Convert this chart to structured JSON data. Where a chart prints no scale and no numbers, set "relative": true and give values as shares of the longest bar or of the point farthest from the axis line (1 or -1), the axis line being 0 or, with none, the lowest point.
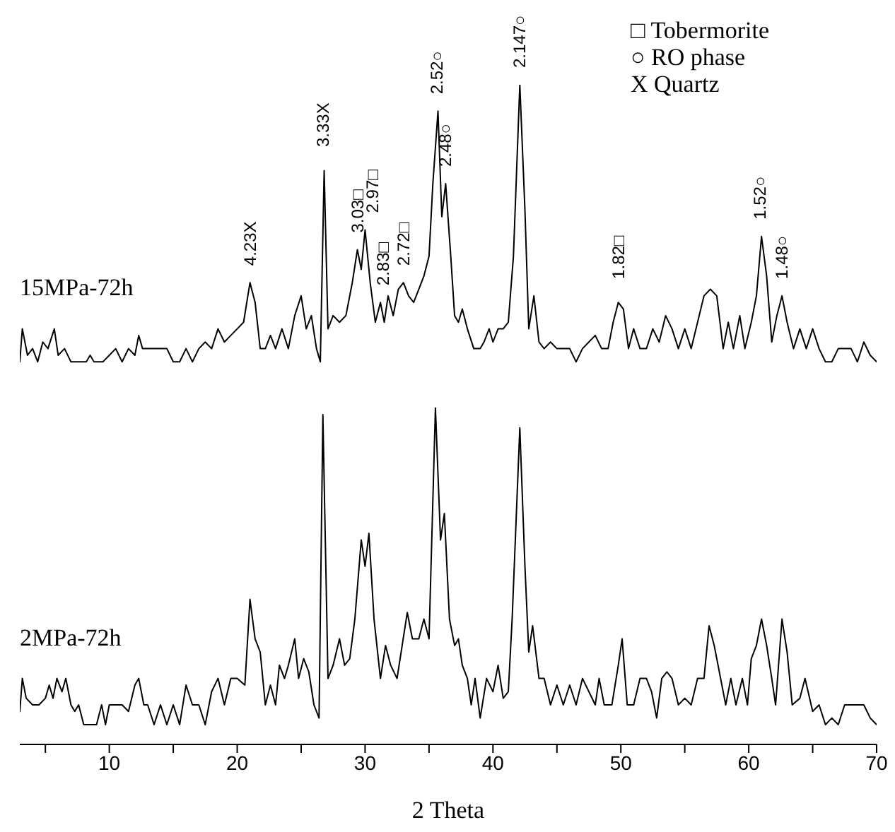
{
  "chart_data": {
    "type": "line",
    "relative": true,
    "xlabel": "2 Theta",
    "xlim": [
      3,
      70
    ],
    "xticks": [
      {
        "value": 5,
        "label": null
      },
      10,
      {
        "value": 15,
        "label": null
      },
      20,
      {
        "value": 25,
        "label": null
      },
      30,
      {
        "value": 35,
        "label": null
      },
      40,
      {
        "value": 45,
        "label": null
      },
      50,
      {
        "value": 55,
        "label": null
      },
      60,
      {
        "value": 65,
        "label": null
      },
      70
    ],
    "series": [
      {
        "name": "15MPa-72h",
        "color": "#000000",
        "x": [
          3.0,
          3.2,
          3.6,
          4.0,
          4.4,
          4.8,
          5.2,
          5.7,
          6.0,
          6.5,
          7.0,
          7.5,
          8.2,
          8.5,
          8.8,
          9.5,
          10.0,
          10.5,
          11.0,
          11.5,
          12.0,
          12.3,
          12.6,
          13.5,
          14.5,
          15.0,
          15.5,
          16.0,
          16.5,
          17.0,
          17.5,
          18.0,
          18.5,
          19.0,
          19.5,
          20.0,
          20.5,
          21.0,
          21.4,
          21.8,
          22.2,
          22.6,
          23.0,
          23.5,
          24.0,
          24.5,
          25.0,
          25.4,
          25.8,
          26.2,
          26.5,
          26.8,
          27.1,
          27.5,
          28.0,
          28.5,
          29.0,
          29.4,
          29.7,
          30.0,
          30.4,
          30.8,
          31.2,
          31.5,
          31.8,
          32.2,
          32.6,
          33.0,
          33.4,
          33.8,
          34.2,
          34.6,
          35.0,
          35.3,
          35.7,
          36.0,
          36.3,
          36.7,
          37.0,
          37.3,
          37.6,
          38.0,
          38.5,
          39.0,
          39.3,
          39.7,
          40.0,
          40.4,
          40.8,
          41.2,
          41.6,
          42.1,
          42.5,
          42.8,
          43.2,
          43.6,
          44.0,
          44.5,
          45.0,
          46.0,
          46.5,
          47.0,
          47.5,
          48.0,
          48.5,
          49.0,
          49.4,
          49.8,
          50.2,
          50.6,
          51.0,
          51.5,
          52.0,
          52.5,
          53.0,
          53.5,
          54.0,
          54.5,
          55.0,
          55.5,
          56.0,
          56.5,
          57.0,
          57.5,
          58.0,
          58.4,
          58.8,
          59.3,
          59.7,
          60.2,
          60.6,
          61.0,
          61.4,
          61.8,
          62.2,
          62.6,
          63.0,
          63.5,
          64.0,
          64.5,
          65.0,
          65.5,
          66.0,
          66.5,
          67.0,
          68.0,
          68.5,
          69.0,
          69.5,
          70.0
        ],
        "values": [
          0.58,
          0.63,
          0.59,
          0.6,
          0.58,
          0.61,
          0.6,
          0.63,
          0.59,
          0.6,
          0.58,
          0.58,
          0.58,
          0.59,
          0.58,
          0.58,
          0.59,
          0.6,
          0.58,
          0.6,
          0.59,
          0.62,
          0.6,
          0.6,
          0.6,
          0.58,
          0.58,
          0.6,
          0.58,
          0.6,
          0.61,
          0.6,
          0.63,
          0.61,
          0.62,
          0.63,
          0.64,
          0.7,
          0.67,
          0.6,
          0.6,
          0.62,
          0.6,
          0.63,
          0.6,
          0.65,
          0.68,
          0.63,
          0.65,
          0.6,
          0.58,
          0.87,
          0.63,
          0.65,
          0.64,
          0.65,
          0.7,
          0.75,
          0.72,
          0.78,
          0.7,
          0.64,
          0.67,
          0.64,
          0.68,
          0.65,
          0.69,
          0.7,
          0.68,
          0.67,
          0.69,
          0.71,
          0.74,
          0.85,
          0.96,
          0.8,
          0.85,
          0.74,
          0.65,
          0.64,
          0.66,
          0.63,
          0.6,
          0.6,
          0.61,
          0.63,
          0.61,
          0.63,
          0.63,
          0.64,
          0.74,
          1.0,
          0.81,
          0.63,
          0.68,
          0.61,
          0.6,
          0.61,
          0.6,
          0.6,
          0.58,
          0.6,
          0.61,
          0.62,
          0.6,
          0.6,
          0.64,
          0.67,
          0.66,
          0.6,
          0.63,
          0.6,
          0.6,
          0.63,
          0.61,
          0.65,
          0.63,
          0.6,
          0.63,
          0.6,
          0.64,
          0.68,
          0.69,
          0.68,
          0.6,
          0.64,
          0.6,
          0.65,
          0.6,
          0.64,
          0.68,
          0.77,
          0.71,
          0.61,
          0.65,
          0.68,
          0.64,
          0.6,
          0.63,
          0.6,
          0.63,
          0.6,
          0.58,
          0.58,
          0.6,
          0.6,
          0.58,
          0.61,
          0.59,
          0.58
        ]
      },
      {
        "name": "2MPa-72h",
        "color": "#000000",
        "x": [
          3.0,
          3.2,
          3.5,
          4.0,
          4.5,
          5.0,
          5.3,
          5.6,
          5.9,
          6.3,
          6.6,
          7.0,
          7.3,
          7.6,
          8.0,
          9.0,
          9.4,
          9.7,
          10.0,
          11.0,
          11.5,
          12.0,
          12.3,
          12.7,
          13.0,
          13.5,
          14.0,
          14.5,
          15.0,
          15.5,
          16.0,
          16.5,
          17.0,
          17.5,
          18.0,
          18.5,
          19.0,
          19.5,
          20.0,
          20.6,
          21.0,
          21.4,
          21.8,
          22.2,
          22.6,
          23.0,
          23.3,
          23.7,
          24.0,
          24.5,
          24.8,
          25.2,
          25.6,
          26.0,
          26.4,
          26.7,
          27.1,
          27.5,
          28.0,
          28.4,
          28.8,
          29.2,
          29.7,
          30.0,
          30.3,
          30.7,
          31.2,
          31.6,
          32.0,
          32.5,
          32.9,
          33.3,
          33.7,
          34.2,
          34.6,
          35.0,
          35.5,
          35.9,
          36.2,
          36.6,
          37.0,
          37.3,
          37.6,
          38.0,
          38.3,
          38.6,
          39.0,
          39.5,
          40.0,
          40.4,
          40.8,
          41.2,
          41.5,
          42.1,
          42.5,
          42.8,
          43.1,
          43.6,
          44.0,
          44.5,
          45.0,
          45.5,
          46.0,
          46.5,
          47.0,
          47.5,
          48.0,
          48.3,
          48.7,
          49.3,
          49.8,
          50.1,
          50.5,
          51.0,
          51.5,
          52.0,
          52.4,
          52.8,
          53.2,
          53.6,
          54.0,
          54.5,
          55.0,
          55.5,
          56.0,
          56.5,
          56.9,
          57.3,
          57.8,
          58.2,
          58.6,
          59.0,
          59.5,
          59.9,
          60.2,
          60.6,
          61.0,
          61.4,
          61.8,
          62.1,
          62.6,
          63.0,
          63.4,
          64.0,
          64.4,
          65.0,
          65.5,
          66.0,
          66.5,
          67.0,
          67.5,
          68.0,
          68.5,
          69.0,
          69.5,
          70.0
        ],
        "values": [
          0.05,
          0.1,
          0.07,
          0.06,
          0.06,
          0.07,
          0.09,
          0.07,
          0.1,
          0.08,
          0.1,
          0.06,
          0.05,
          0.06,
          0.03,
          0.03,
          0.06,
          0.03,
          0.06,
          0.06,
          0.05,
          0.09,
          0.1,
          0.06,
          0.06,
          0.03,
          0.06,
          0.03,
          0.06,
          0.03,
          0.09,
          0.06,
          0.06,
          0.03,
          0.08,
          0.1,
          0.06,
          0.1,
          0.1,
          0.09,
          0.22,
          0.16,
          0.14,
          0.06,
          0.09,
          0.06,
          0.12,
          0.1,
          0.12,
          0.16,
          0.1,
          0.13,
          0.11,
          0.06,
          0.04,
          0.5,
          0.1,
          0.12,
          0.16,
          0.12,
          0.13,
          0.19,
          0.31,
          0.27,
          0.32,
          0.19,
          0.1,
          0.15,
          0.12,
          0.1,
          0.15,
          0.2,
          0.16,
          0.16,
          0.19,
          0.16,
          0.51,
          0.31,
          0.35,
          0.19,
          0.15,
          0.16,
          0.12,
          0.1,
          0.06,
          0.1,
          0.04,
          0.1,
          0.08,
          0.12,
          0.07,
          0.08,
          0.19,
          0.48,
          0.27,
          0.14,
          0.18,
          0.1,
          0.1,
          0.06,
          0.09,
          0.06,
          0.09,
          0.06,
          0.1,
          0.08,
          0.06,
          0.1,
          0.06,
          0.06,
          0.12,
          0.16,
          0.06,
          0.06,
          0.1,
          0.1,
          0.08,
          0.04,
          0.1,
          0.11,
          0.1,
          0.06,
          0.07,
          0.06,
          0.1,
          0.1,
          0.18,
          0.15,
          0.1,
          0.06,
          0.1,
          0.06,
          0.1,
          0.06,
          0.13,
          0.15,
          0.19,
          0.15,
          0.1,
          0.06,
          0.19,
          0.14,
          0.06,
          0.07,
          0.1,
          0.05,
          0.06,
          0.03,
          0.04,
          0.03,
          0.06,
          0.06,
          0.06,
          0.06,
          0.04,
          0.03
        ]
      }
    ],
    "annotations": [
      {
        "text": "4.23X",
        "x": 21.0,
        "y": 0.7
      },
      {
        "text": "3.33X",
        "x": 26.7,
        "y": 0.88
      },
      {
        "text": "3.03□",
        "x": 29.4,
        "y": 0.75
      },
      {
        "text": "2.97□",
        "x": 30.6,
        "y": 0.78
      },
      {
        "text": "2.83□",
        "x": 31.4,
        "y": 0.67
      },
      {
        "text": "2.72□",
        "x": 33.0,
        "y": 0.7
      },
      {
        "text": "2.52○",
        "x": 35.6,
        "y": 0.96
      },
      {
        "text": "2.48○",
        "x": 36.3,
        "y": 0.85
      },
      {
        "text": "2.147○",
        "x": 42.1,
        "y": 1.0
      },
      {
        "text": "1.82□",
        "x": 49.8,
        "y": 0.68
      },
      {
        "text": "1.52○",
        "x": 60.9,
        "y": 0.77
      },
      {
        "text": "1.48○",
        "x": 62.6,
        "y": 0.68
      },
      "□ Tobermorite",
      "○ RO phase",
      "X Quartz"
    ]
  }
}
